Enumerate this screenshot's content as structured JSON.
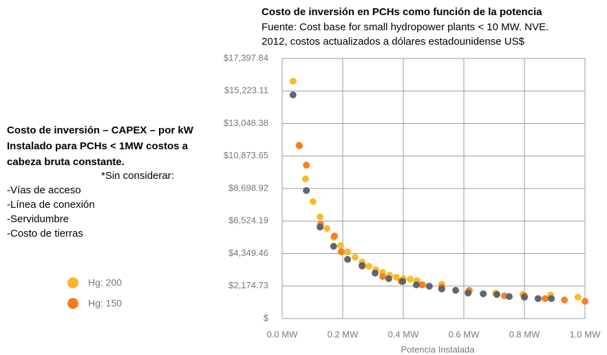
{
  "chart_data": {
    "type": "scatter",
    "title": "Costo de inversión en PCHs como función de la potencia",
    "subtitle_lines": [
      "Fuente: Cost base for small hydropower plants < 10 MW. NVE.",
      "2012, costos actualizados a dólares estadounidense US$"
    ],
    "x_label": "Potencia Instalada",
    "xlim": [
      0,
      1
    ],
    "xticks": [
      {
        "value": 0,
        "label": "0.0 MW"
      },
      {
        "value": 0.2,
        "label": "0.2 MW"
      },
      {
        "value": 0.4,
        "label": "0.4 MW"
      },
      {
        "value": 0.6,
        "label": "0.6 MW"
      },
      {
        "value": 0.8,
        "label": "0.8 MW"
      },
      {
        "value": 1,
        "label": "1.0 MW"
      }
    ],
    "ylim": [
      0,
      17397.84
    ],
    "yticks": [
      {
        "value": 0,
        "label": "$"
      },
      {
        "value": 2174.73,
        "label": "$2,174.73"
      },
      {
        "value": 4349.46,
        "label": "$4,349.46"
      },
      {
        "value": 6524.19,
        "label": "$6,524.19"
      },
      {
        "value": 8698.92,
        "label": "$8,698.92"
      },
      {
        "value": 10873.65,
        "label": "$10,873.65"
      },
      {
        "value": 13048.38,
        "label": "$13,048.38"
      },
      {
        "value": 15223.11,
        "label": "$15,223.11"
      },
      {
        "value": 17397.84,
        "label": "$17,397.84"
      }
    ],
    "grid": true,
    "series": [
      {
        "name": "Hg: 200",
        "color": "#fbb623",
        "x": [
          0.036,
          0.055,
          0.077,
          0.102,
          0.125,
          0.148,
          0.17,
          0.193,
          0.216,
          0.241,
          0.264,
          0.286,
          0.309,
          0.332,
          0.355,
          0.377,
          0.4,
          0.423,
          0.445,
          0.466,
          0.527,
          0.614,
          0.705,
          0.795,
          0.886,
          0.977
        ],
        "values": [
          15879,
          11598,
          9343,
          7824,
          6812,
          6029,
          5431,
          4879,
          4465,
          4096,
          3774,
          3498,
          3268,
          3084,
          2900,
          2762,
          2669,
          2623,
          2531,
          2255,
          2301,
          1795,
          1703,
          1611,
          1565,
          1427
        ]
      },
      {
        "name": "Hg: 150",
        "color": "#f47b20",
        "x": [
          0.057,
          0.08,
          0.127,
          0.173,
          0.195,
          0.264,
          0.332,
          0.393,
          0.461,
          0.527,
          0.618,
          0.709,
          0.734,
          0.8,
          0.868,
          0.932,
          1.0
        ],
        "values": [
          11552,
          10264,
          6305,
          5523,
          4465,
          3498,
          2808,
          2485,
          2255,
          2117,
          1887,
          1611,
          1519,
          1519,
          1335,
          1243,
          1151
        ]
      },
      {
        "color": "#56606b",
        "x": [
          0.036,
          0.08,
          0.125,
          0.17,
          0.216,
          0.264,
          0.307,
          0.352,
          0.398,
          0.443,
          0.486,
          0.527,
          0.573,
          0.614,
          0.664,
          0.709,
          0.75,
          0.8,
          0.845,
          0.889
        ],
        "values": [
          14958,
          8561,
          6121,
          4833,
          3958,
          3544,
          3038,
          2669,
          2485,
          2255,
          2163,
          1979,
          1887,
          1703,
          1657,
          1611,
          1473,
          1427,
          1335,
          1335
        ]
      }
    ]
  },
  "left_panel": {
    "heading_lines": [
      "Costo de inversión – CAPEX – por kW",
      "Instalado para PCHs < 1MW costos a",
      "cabeza bruta constante."
    ],
    "note": "*Sin considerar:",
    "items": [
      "-Vías de acceso",
      "-Línea de conexión",
      "-Servidumbre",
      "-Costo de tierras"
    ]
  }
}
